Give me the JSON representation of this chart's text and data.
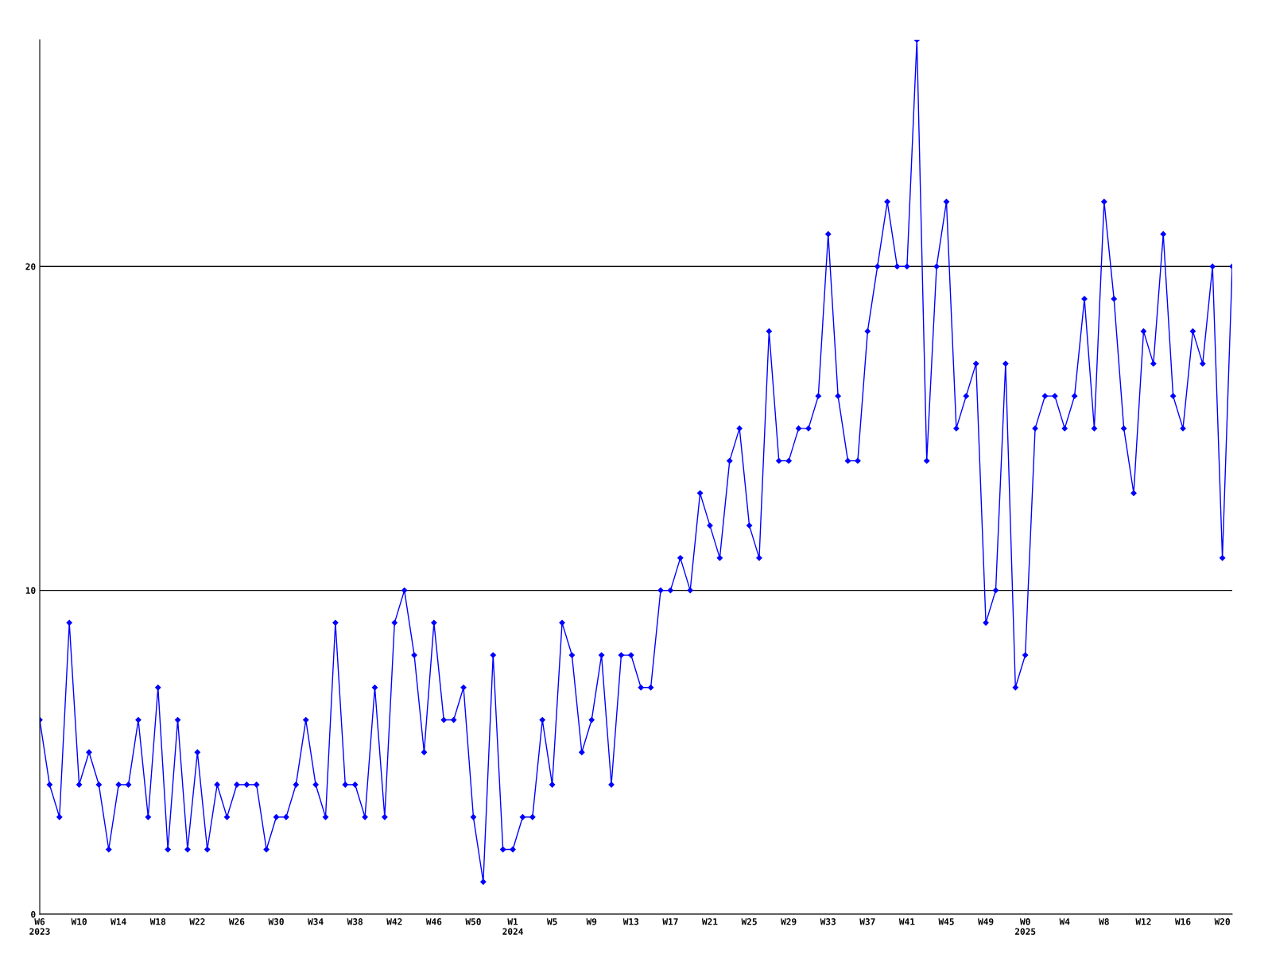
{
  "chart_data": {
    "type": "line",
    "categories": [
      "W6\n2023",
      null,
      null,
      null,
      "W10",
      null,
      null,
      null,
      "W14",
      null,
      null,
      null,
      "W18",
      null,
      null,
      null,
      "W22",
      null,
      null,
      null,
      "W26",
      null,
      null,
      null,
      "W30",
      null,
      null,
      null,
      "W34",
      null,
      null,
      null,
      "W38",
      null,
      null,
      null,
      "W42",
      null,
      null,
      null,
      "W46",
      null,
      null,
      null,
      "W50",
      null,
      null,
      null,
      "W1\n2024",
      null,
      null,
      null,
      "W5",
      null,
      null,
      null,
      "W9",
      null,
      null,
      null,
      "W13",
      null,
      null,
      null,
      "W17",
      null,
      null,
      null,
      "W21",
      null,
      null,
      null,
      "W25",
      null,
      null,
      null,
      "W29",
      null,
      null,
      null,
      "W33",
      null,
      null,
      null,
      "W37",
      null,
      null,
      null,
      "W41",
      null,
      null,
      null,
      "W45",
      null,
      null,
      null,
      "W49",
      null,
      null,
      null,
      "W0\n2025",
      null,
      null,
      null,
      "W4",
      null,
      null,
      null,
      "W8",
      null,
      null,
      null,
      "W12",
      null,
      null,
      null,
      "W16",
      null,
      null,
      null,
      "W20",
      null
    ],
    "series": [
      {
        "color": "#0000ff",
        "values": [
          6,
          4,
          3,
          9,
          4,
          5,
          4,
          2,
          4,
          4,
          6,
          3,
          7,
          2,
          6,
          2,
          5,
          2,
          4,
          3,
          4,
          4,
          4,
          2,
          3,
          3,
          4,
          6,
          4,
          3,
          9,
          4,
          4,
          3,
          7,
          3,
          9,
          10,
          8,
          5,
          9,
          6,
          6,
          7,
          3,
          1,
          8,
          2,
          2,
          3,
          3,
          6,
          4,
          9,
          8,
          5,
          6,
          8,
          4,
          8,
          8,
          7,
          7,
          10,
          10,
          11,
          10,
          13,
          12,
          11,
          14,
          15,
          12,
          11,
          18,
          14,
          14,
          15,
          15,
          16,
          21,
          16,
          14,
          14,
          18,
          20,
          22,
          20,
          20,
          27,
          14,
          20,
          22,
          15,
          16,
          17,
          9,
          10,
          17,
          7,
          8,
          15,
          16,
          16,
          15,
          16,
          19,
          15,
          22,
          19,
          15,
          13,
          18,
          17,
          21,
          16,
          15,
          18,
          17,
          20,
          11,
          20
        ]
      }
    ],
    "ylim": [
      0,
      27
    ],
    "yticks": [
      0,
      10,
      20
    ],
    "grid": "y",
    "marker": "diamond",
    "line_style": "solid"
  }
}
